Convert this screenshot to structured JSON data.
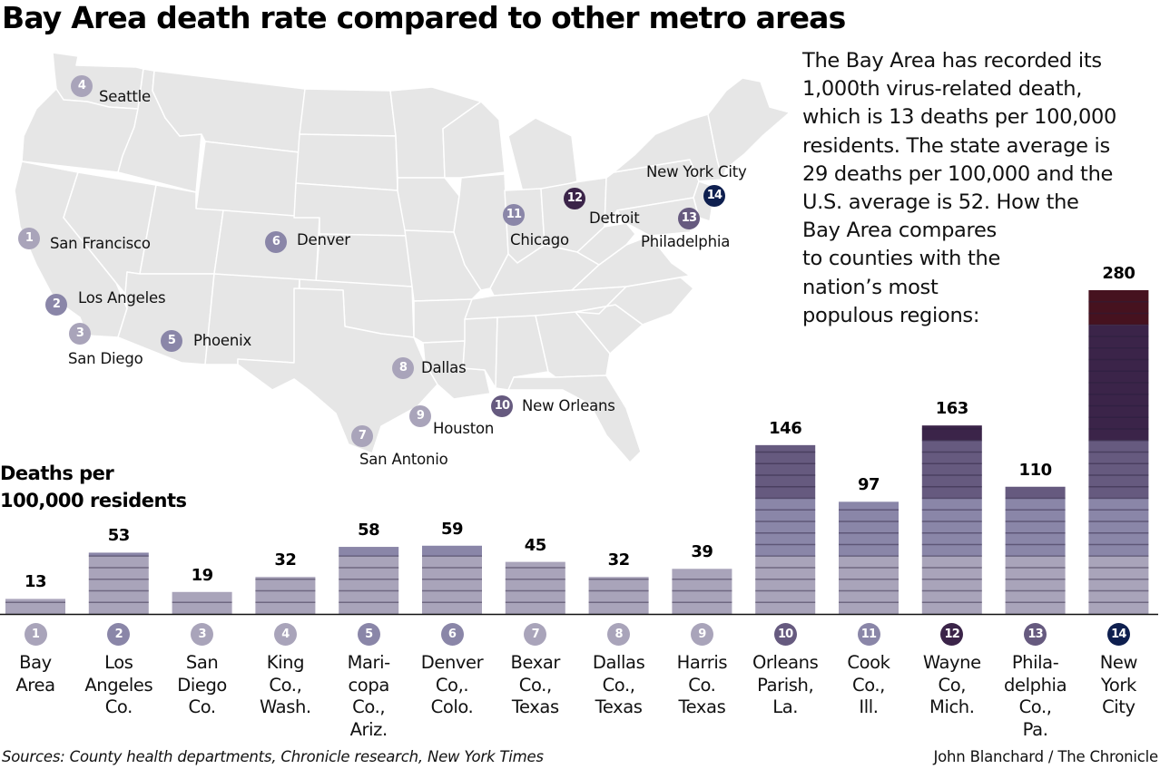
{
  "title": "Bay Area death rate compared to other metro areas",
  "intro_lines": [
    "The Bay Area has recorded its",
    "1,000th virus-related death,",
    "which is 13 deaths per 100,000",
    "residents. The state average is",
    "29 deaths per 100,000 and the",
    "U.S. average is 52. How the",
    "Bay Area compares",
    "to counties with the",
    "nation’s most",
    "populous regions:"
  ],
  "y_label_lines": [
    "Deaths per",
    "100,000 residents"
  ],
  "map": {
    "cities": [
      {
        "num": "1",
        "name": "San Francisco"
      },
      {
        "num": "2",
        "name": "Los Angeles"
      },
      {
        "num": "3",
        "name": "San Diego"
      },
      {
        "num": "4",
        "name": "Seattle"
      },
      {
        "num": "5",
        "name": "Phoenix"
      },
      {
        "num": "6",
        "name": "Denver"
      },
      {
        "num": "7",
        "name": "San Antonio"
      },
      {
        "num": "8",
        "name": "Dallas"
      },
      {
        "num": "9",
        "name": "Houston"
      },
      {
        "num": "10",
        "name": "New Orleans"
      },
      {
        "num": "11",
        "name": "Chicago"
      },
      {
        "num": "12",
        "name": "Detroit"
      },
      {
        "num": "13",
        "name": "Philadelphia"
      },
      {
        "num": "14",
        "name": "New York City"
      }
    ]
  },
  "colors": {
    "band_0_50": "#a9a4ba",
    "band_50_100": "#8a86a8",
    "band_100_150": "#665a7f",
    "band_150_250": "#3b2449",
    "band_250_300": "#46121f",
    "pin_1": "#a9a4ba",
    "pin_2": "#8a86a8",
    "pin_3": "#a9a4ba",
    "pin_4": "#a9a4ba",
    "pin_5": "#8a86a8",
    "pin_6": "#8a86a8",
    "pin_7": "#a9a4ba",
    "pin_8": "#a9a4ba",
    "pin_9": "#a9a4ba",
    "pin_10": "#665a7f",
    "pin_11": "#8a86a8",
    "pin_12": "#3b2449",
    "pin_13": "#665a7f",
    "pin_14": "#0e1f4f",
    "map_land": "#e6e6e6",
    "map_border": "#ffffff"
  },
  "chart_data": {
    "type": "bar",
    "title": "Bay Area death rate compared to other metro areas",
    "ylabel": "Deaths per 100,000 residents",
    "xlabel": "",
    "ylim": [
      0,
      280
    ],
    "grid": false,
    "color_bands": [
      {
        "from": 0,
        "to": 50,
        "color": "#a9a4ba"
      },
      {
        "from": 50,
        "to": 100,
        "color": "#8a86a8"
      },
      {
        "from": 100,
        "to": 150,
        "color": "#665a7f"
      },
      {
        "from": 150,
        "to": 250,
        "color": "#3b2449"
      },
      {
        "from": 250,
        "to": 300,
        "color": "#46121f"
      }
    ],
    "stripe_every": 10,
    "categories": [
      "Bay Area",
      "Los Angeles Co.",
      "San Diego Co.",
      "King Co., Wash.",
      "Maricopa Co., Ariz.",
      "Denver Co,. Colo.",
      "Bexar Co., Texas",
      "Dallas Co., Texas",
      "Harris Co. Texas",
      "Orleans Parish, La.",
      "Cook Co., Ill.",
      "Wayne Co, Mich.",
      "Philadelphia Co., Pa.",
      "New York City"
    ],
    "category_lines": [
      [
        "Bay",
        "Area"
      ],
      [
        "Los",
        "Angeles",
        "Co."
      ],
      [
        "San",
        "Diego",
        "Co."
      ],
      [
        "King",
        "Co.,",
        "Wash."
      ],
      [
        "Mari-",
        "copa",
        "Co.,",
        "Ariz."
      ],
      [
        "Denver",
        "Co,.",
        "Colo."
      ],
      [
        "Bexar",
        "Co.,",
        "Texas"
      ],
      [
        "Dallas",
        "Co.,",
        "Texas"
      ],
      [
        "Harris",
        "Co.",
        "Texas"
      ],
      [
        "Orleans",
        "Parish,",
        "La."
      ],
      [
        "Cook",
        "Co.,",
        "Ill."
      ],
      [
        "Wayne",
        "Co,",
        "Mich."
      ],
      [
        "Phila-",
        "delphia",
        "Co.,",
        "Pa."
      ],
      [
        "New",
        "York",
        "City"
      ]
    ],
    "numbers": [
      "1",
      "2",
      "3",
      "4",
      "5",
      "6",
      "7",
      "8",
      "9",
      "10",
      "11",
      "12",
      "13",
      "14"
    ],
    "values": [
      13,
      53,
      19,
      32,
      58,
      59,
      45,
      32,
      39,
      146,
      97,
      163,
      110,
      280
    ],
    "data_labels": [
      "13",
      "53",
      "19",
      "32",
      "58",
      "59",
      "45",
      "32",
      "39",
      "146",
      "97",
      "163",
      "110",
      "280"
    ]
  },
  "footer": {
    "source": "Sources: County health departments, Chronicle research, New York Times",
    "credit": "John Blanchard / The Chronicle"
  }
}
